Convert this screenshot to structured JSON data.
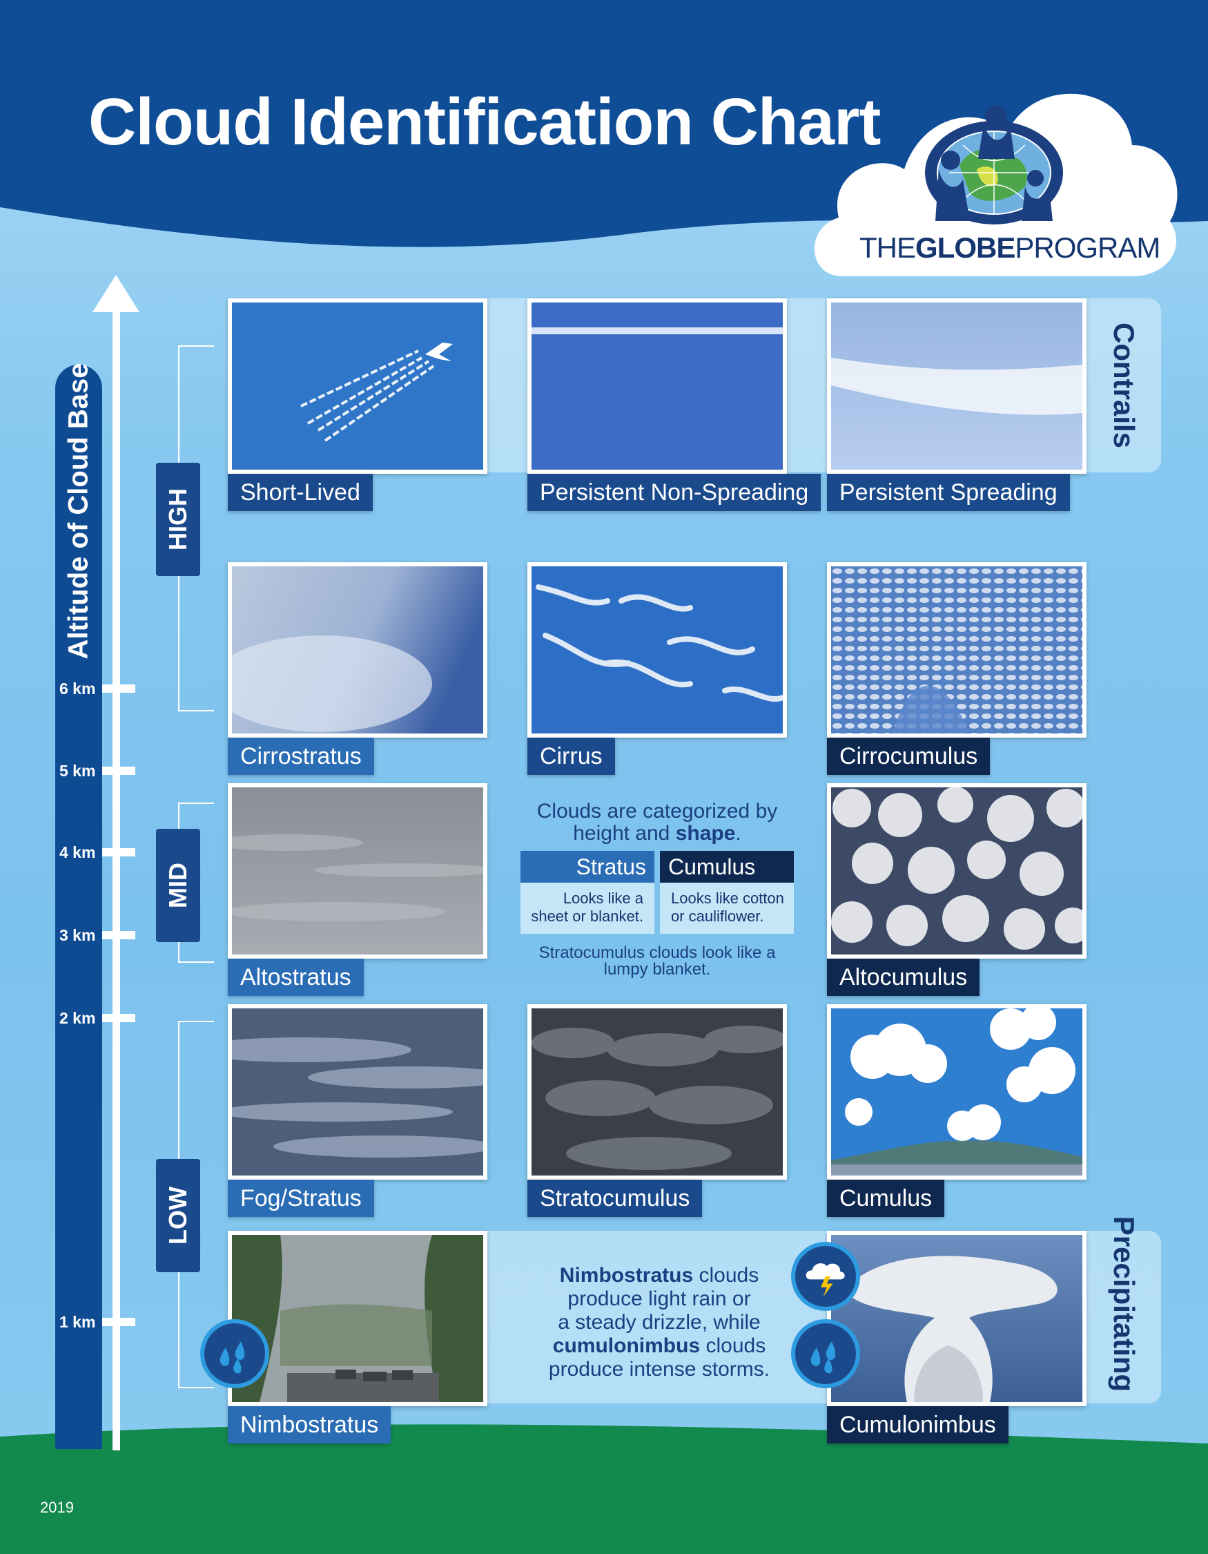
{
  "title": "Cloud Identification Chart",
  "logo": {
    "prefix": "THE",
    "bold": "GLOBE",
    "suffix": "PROGRAM"
  },
  "axis": {
    "title": "Altitude of Cloud Base",
    "ticks": [
      "6 km",
      "5 km",
      "4 km",
      "3 km",
      "2 km",
      "1 km"
    ]
  },
  "levels": {
    "high": "HIGH",
    "mid": "MID",
    "low": "LOW"
  },
  "bands": {
    "contrails": "Contrails",
    "precipitating": "Precipitating"
  },
  "clouds": {
    "short_lived": "Short-Lived",
    "persistent_non_spreading": "Persistent Non-Spreading",
    "persistent_spreading": "Persistent Spreading",
    "cirrostratus": "Cirrostratus",
    "cirrus": "Cirrus",
    "cirrocumulus": "Cirrocumulus",
    "altostratus": "Altostratus",
    "altocumulus": "Altocumulus",
    "fog_stratus": "Fog/Stratus",
    "stratocumulus": "Stratocumulus",
    "cumulus": "Cumulus",
    "nimbostratus": "Nimbostratus",
    "cumulonimbus": "Cumulonimbus"
  },
  "info": {
    "line1": "Clouds are categorized by",
    "line2_pre": "height and ",
    "line2_bold": "shape",
    "line2_post": ".",
    "stratus_head": "Stratus",
    "cumulus_head": "Cumulus",
    "stratus_desc1": "Looks like a",
    "stratus_desc2": "sheet or blanket.",
    "cumulus_desc1": "Looks like cotton",
    "cumulus_desc2": "or cauliflower.",
    "strato1": "Stratocumulus clouds look like a",
    "strato2": "lumpy blanket."
  },
  "precip": {
    "b1": "Nimbostratus",
    "t1": " clouds",
    "t2": "produce light rain or",
    "t3": "a steady drizzle, while",
    "b2": "cumulonimbus",
    "t4": " clouds",
    "t5": "produce intense storms."
  },
  "year": "2019",
  "icons": [
    "rain-icon",
    "lightning-icon",
    "rain-icon"
  ],
  "colors": {
    "dark_blue": "#0f4b93",
    "navy": "#14356e",
    "label_blue": "#2a6db5",
    "ground_green": "#128a4e"
  }
}
